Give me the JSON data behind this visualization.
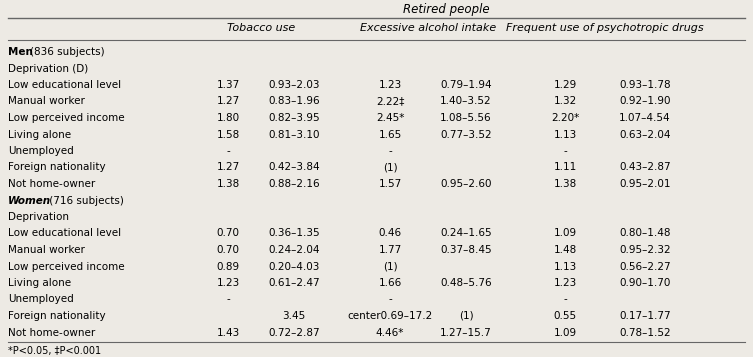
{
  "title": "Retired people",
  "col_headers": [
    "Tobacco use",
    "Excessive alcohol intake",
    "Frequent use of psychotropic drugs"
  ],
  "rows": [
    {
      "label": "Men (836 subjects)",
      "label_bold": "Men ",
      "label_normal": "(836 subjects)",
      "bold": true,
      "italic_bold": false,
      "data": [
        "",
        "",
        "",
        "",
        "",
        ""
      ]
    },
    {
      "label": "Deprivation (D)",
      "bold": false,
      "data": [
        "",
        "",
        "",
        "",
        "",
        ""
      ]
    },
    {
      "label": "Low educational level",
      "bold": false,
      "data": [
        "1.37",
        "0.93–2.03",
        "1.23",
        "0.79–1.94",
        "1.29",
        "0.93–1.78"
      ]
    },
    {
      "label": "Manual worker",
      "bold": false,
      "data": [
        "1.27",
        "0.83–1.96",
        "2.22‡",
        "1.40–3.52",
        "1.32",
        "0.92–1.90"
      ]
    },
    {
      "label": "Low perceived income",
      "bold": false,
      "data": [
        "1.80",
        "0.82–3.95",
        "2.45*",
        "1.08–5.56",
        "2.20*",
        "1.07–4.54"
      ]
    },
    {
      "label": "Living alone",
      "bold": false,
      "data": [
        "1.58",
        "0.81–3.10",
        "1.65",
        "0.77–3.52",
        "1.13",
        "0.63–2.04"
      ]
    },
    {
      "label": "Unemployed",
      "bold": false,
      "data": [
        "-",
        "",
        "-",
        "",
        "-",
        ""
      ]
    },
    {
      "label": "Foreign nationality",
      "bold": false,
      "data": [
        "1.27",
        "0.42–3.84",
        "(1)",
        "",
        "1.11",
        "0.43–2.87"
      ]
    },
    {
      "label": "Not home-owner",
      "bold": false,
      "data": [
        "1.38",
        "0.88–2.16",
        "1.57",
        "0.95–2.60",
        "1.38",
        "0.95–2.01"
      ]
    },
    {
      "label": "Women (716 subjects)",
      "label_bold": "Women",
      "label_normal": " (716 subjects)",
      "bold": true,
      "italic_bold": true,
      "data": [
        "",
        "",
        "",
        "",
        "",
        ""
      ]
    },
    {
      "label": "Deprivation",
      "bold": false,
      "data": [
        "",
        "",
        "",
        "",
        "",
        ""
      ]
    },
    {
      "label": "Low educational level",
      "bold": false,
      "data": [
        "0.70",
        "0.36–1.35",
        "0.46",
        "0.24–1.65",
        "1.09",
        "0.80–1.48"
      ]
    },
    {
      "label": "Manual worker",
      "bold": false,
      "data": [
        "0.70",
        "0.24–2.04",
        "1.77",
        "0.37–8.45",
        "1.48",
        "0.95–2.32"
      ]
    },
    {
      "label": "Low perceived income",
      "bold": false,
      "data": [
        "0.89",
        "0.20–4.03",
        "(1)",
        "",
        "1.13",
        "0.56–2.27"
      ]
    },
    {
      "label": "Living alone",
      "bold": false,
      "data": [
        "1.23",
        "0.61–2.47",
        "1.66",
        "0.48–5.76",
        "1.23",
        "0.90–1.70"
      ]
    },
    {
      "label": "Unemployed",
      "bold": false,
      "data": [
        "-",
        "",
        "-",
        "",
        "-",
        ""
      ]
    },
    {
      "label": "Foreign nationality",
      "bold": false,
      "data": [
        "",
        "3.45",
        "center0.69–17.2",
        "(1)",
        "0.55",
        "0.17–1.77"
      ]
    },
    {
      "label": "Not home-owner",
      "bold": false,
      "data": [
        "1.43",
        "0.72–2.87",
        "4.46*",
        "1.27–15.7",
        "1.09",
        "0.78–1.52"
      ]
    }
  ],
  "footnote": "*P<0.05, ‡P<0.001",
  "bg_color": "#edeae4",
  "line_color": "#666666",
  "text_color": "#000000",
  "fontsize": 7.5,
  "header_fontsize": 8.0,
  "title_fontsize": 8.5
}
